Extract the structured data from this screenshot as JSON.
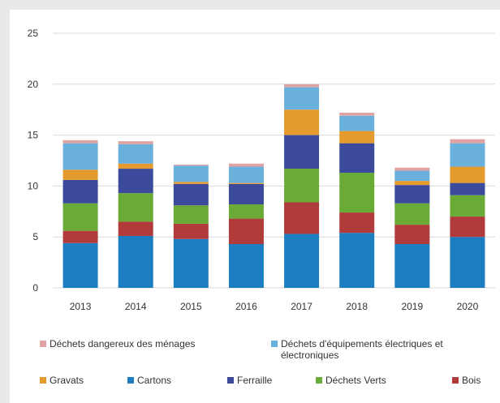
{
  "chart_data": {
    "type": "bar",
    "stacked": true,
    "categories": [
      "2013",
      "2014",
      "2015",
      "2016",
      "2017",
      "2018",
      "2019",
      "2020"
    ],
    "ylim": [
      0,
      25
    ],
    "yticks": [
      0,
      5,
      10,
      15,
      20,
      25
    ],
    "grid": true,
    "legend_position": "bottom",
    "series": [
      {
        "name": "Cartons",
        "color": "#1c7ec0",
        "values": [
          4.4,
          5.1,
          4.8,
          4.3,
          5.3,
          5.4,
          4.3,
          5.0
        ]
      },
      {
        "name": "Bois",
        "color": "#b13a3a",
        "values": [
          1.2,
          1.4,
          1.5,
          2.5,
          3.1,
          2.0,
          1.9,
          2.0
        ]
      },
      {
        "name": "Déchets Verts",
        "color": "#6aaa36",
        "values": [
          2.7,
          2.8,
          1.8,
          1.4,
          3.3,
          3.9,
          2.1,
          2.1
        ]
      },
      {
        "name": "Ferraille",
        "color": "#3b4a9a",
        "values": [
          2.3,
          2.4,
          2.1,
          2.0,
          3.3,
          2.9,
          1.8,
          1.2
        ]
      },
      {
        "name": "Gravats",
        "color": "#e59a2d",
        "values": [
          1.0,
          0.5,
          0.2,
          0.1,
          2.5,
          1.2,
          0.4,
          1.6
        ]
      },
      {
        "name": "Déchets d'équipements électriques et électroniques",
        "color": "#6ab0dd",
        "values": [
          2.6,
          1.9,
          1.6,
          1.6,
          2.2,
          1.5,
          1.0,
          2.3
        ]
      },
      {
        "name": "Déchets dangereux des ménages",
        "color": "#e0a3a3",
        "values": [
          0.3,
          0.3,
          0.1,
          0.3,
          0.3,
          0.3,
          0.3,
          0.4
        ]
      }
    ]
  },
  "legend": [
    {
      "label": "Déchets dangereux des ménages",
      "color": "#e0a3a3"
    },
    {
      "label": "Déchets d'équipements électriques et électroniques",
      "color": "#6ab0dd"
    },
    {
      "label": "Gravats",
      "color": "#e59a2d"
    },
    {
      "label": "Cartons",
      "color": "#1c7ec0"
    },
    {
      "label": "Ferraille",
      "color": "#3b4a9a"
    },
    {
      "label": "Déchets Verts",
      "color": "#6aaa36"
    },
    {
      "label": "Bois",
      "color": "#b13a3a"
    }
  ]
}
